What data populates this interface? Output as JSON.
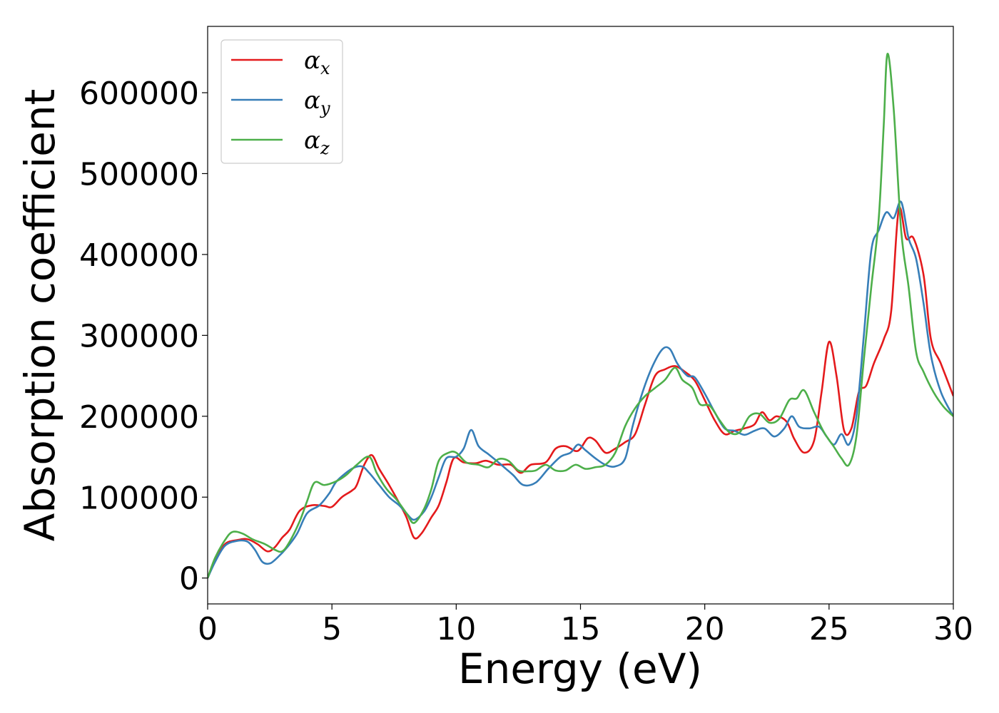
{
  "chart_data": {
    "type": "line",
    "xlabel": "Energy (eV)",
    "ylabel": "Absorption coefficient",
    "xlim": [
      0,
      30
    ],
    "ylim": [
      -32000,
      682000
    ],
    "xticks": [
      0,
      5,
      10,
      15,
      20,
      25,
      30
    ],
    "yticks": [
      0,
      100000,
      200000,
      300000,
      400000,
      500000,
      600000
    ],
    "grid": false,
    "legend_position": "top-left",
    "series": [
      {
        "name": "α",
        "subscript": "x",
        "color": "#e41a1c",
        "points": [
          [
            0,
            0
          ],
          [
            0.3,
            22000
          ],
          [
            0.7,
            42000
          ],
          [
            1.2,
            47000
          ],
          [
            1.6,
            48000
          ],
          [
            2.0,
            42000
          ],
          [
            2.4,
            33000
          ],
          [
            2.7,
            38000
          ],
          [
            3.0,
            50000
          ],
          [
            3.3,
            60000
          ],
          [
            3.7,
            83000
          ],
          [
            4.2,
            90000
          ],
          [
            4.7,
            89000
          ],
          [
            5.0,
            88000
          ],
          [
            5.4,
            100000
          ],
          [
            5.8,
            108000
          ],
          [
            6.0,
            115000
          ],
          [
            6.3,
            140000
          ],
          [
            6.6,
            152000
          ],
          [
            6.9,
            135000
          ],
          [
            7.3,
            115000
          ],
          [
            7.7,
            93000
          ],
          [
            8.0,
            75000
          ],
          [
            8.3,
            50000
          ],
          [
            8.6,
            55000
          ],
          [
            9.0,
            75000
          ],
          [
            9.3,
            90000
          ],
          [
            9.6,
            118000
          ],
          [
            9.9,
            148000
          ],
          [
            10.3,
            143000
          ],
          [
            10.8,
            142000
          ],
          [
            11.2,
            145000
          ],
          [
            11.7,
            140000
          ],
          [
            12.2,
            140000
          ],
          [
            12.6,
            130000
          ],
          [
            13.0,
            140000
          ],
          [
            13.6,
            143000
          ],
          [
            14.0,
            160000
          ],
          [
            14.4,
            163000
          ],
          [
            14.8,
            157000
          ],
          [
            15.0,
            160000
          ],
          [
            15.3,
            173000
          ],
          [
            15.6,
            170000
          ],
          [
            16.0,
            155000
          ],
          [
            16.4,
            160000
          ],
          [
            16.8,
            168000
          ],
          [
            17.2,
            178000
          ],
          [
            17.6,
            215000
          ],
          [
            18.0,
            250000
          ],
          [
            18.4,
            258000
          ],
          [
            18.8,
            262000
          ],
          [
            19.2,
            255000
          ],
          [
            19.6,
            244000
          ],
          [
            20.0,
            220000
          ],
          [
            20.4,
            195000
          ],
          [
            20.8,
            178000
          ],
          [
            21.2,
            182000
          ],
          [
            21.6,
            185000
          ],
          [
            22.0,
            190000
          ],
          [
            22.3,
            205000
          ],
          [
            22.6,
            195000
          ],
          [
            22.9,
            200000
          ],
          [
            23.3,
            193000
          ],
          [
            23.6,
            172000
          ],
          [
            24.0,
            155000
          ],
          [
            24.4,
            170000
          ],
          [
            24.7,
            230000
          ],
          [
            25.0,
            292000
          ],
          [
            25.3,
            250000
          ],
          [
            25.6,
            183000
          ],
          [
            25.9,
            185000
          ],
          [
            26.2,
            230000
          ],
          [
            26.5,
            238000
          ],
          [
            26.8,
            265000
          ],
          [
            27.2,
            295000
          ],
          [
            27.5,
            330000
          ],
          [
            27.8,
            455000
          ],
          [
            28.1,
            420000
          ],
          [
            28.4,
            420000
          ],
          [
            28.8,
            375000
          ],
          [
            29.1,
            295000
          ],
          [
            29.5,
            265000
          ],
          [
            30.0,
            225000
          ]
        ]
      },
      {
        "name": "α",
        "subscript": "y",
        "color": "#377eb8",
        "points": [
          [
            0,
            0
          ],
          [
            0.3,
            20000
          ],
          [
            0.7,
            40000
          ],
          [
            1.2,
            46000
          ],
          [
            1.6,
            45000
          ],
          [
            1.9,
            35000
          ],
          [
            2.2,
            20000
          ],
          [
            2.5,
            18000
          ],
          [
            2.8,
            25000
          ],
          [
            3.2,
            38000
          ],
          [
            3.6,
            55000
          ],
          [
            4.0,
            80000
          ],
          [
            4.5,
            90000
          ],
          [
            4.9,
            105000
          ],
          [
            5.2,
            120000
          ],
          [
            5.8,
            135000
          ],
          [
            6.2,
            138000
          ],
          [
            6.5,
            130000
          ],
          [
            6.9,
            115000
          ],
          [
            7.3,
            100000
          ],
          [
            7.7,
            90000
          ],
          [
            8.0,
            80000
          ],
          [
            8.3,
            72000
          ],
          [
            8.7,
            82000
          ],
          [
            9.0,
            100000
          ],
          [
            9.3,
            125000
          ],
          [
            9.6,
            148000
          ],
          [
            10.0,
            150000
          ],
          [
            10.3,
            160000
          ],
          [
            10.6,
            183000
          ],
          [
            10.9,
            163000
          ],
          [
            11.3,
            153000
          ],
          [
            11.7,
            143000
          ],
          [
            12.0,
            135000
          ],
          [
            12.3,
            127000
          ],
          [
            12.7,
            115000
          ],
          [
            13.2,
            118000
          ],
          [
            13.7,
            135000
          ],
          [
            14.2,
            150000
          ],
          [
            14.6,
            155000
          ],
          [
            14.9,
            165000
          ],
          [
            15.2,
            158000
          ],
          [
            15.6,
            148000
          ],
          [
            16.0,
            140000
          ],
          [
            16.4,
            138000
          ],
          [
            16.8,
            148000
          ],
          [
            17.1,
            188000
          ],
          [
            17.5,
            230000
          ],
          [
            17.9,
            262000
          ],
          [
            18.3,
            283000
          ],
          [
            18.6,
            283000
          ],
          [
            18.9,
            265000
          ],
          [
            19.3,
            250000
          ],
          [
            19.6,
            248000
          ],
          [
            20.0,
            228000
          ],
          [
            20.4,
            205000
          ],
          [
            20.8,
            185000
          ],
          [
            21.2,
            182000
          ],
          [
            21.6,
            177000
          ],
          [
            22.0,
            182000
          ],
          [
            22.4,
            185000
          ],
          [
            22.8,
            175000
          ],
          [
            23.2,
            185000
          ],
          [
            23.5,
            200000
          ],
          [
            23.8,
            187000
          ],
          [
            24.2,
            185000
          ],
          [
            24.6,
            187000
          ],
          [
            24.9,
            175000
          ],
          [
            25.2,
            165000
          ],
          [
            25.5,
            178000
          ],
          [
            25.8,
            165000
          ],
          [
            26.1,
            200000
          ],
          [
            26.4,
            300000
          ],
          [
            26.7,
            405000
          ],
          [
            27.0,
            430000
          ],
          [
            27.3,
            452000
          ],
          [
            27.6,
            445000
          ],
          [
            27.9,
            465000
          ],
          [
            28.2,
            420000
          ],
          [
            28.5,
            395000
          ],
          [
            28.8,
            340000
          ],
          [
            29.1,
            275000
          ],
          [
            29.5,
            230000
          ],
          [
            30.0,
            200000
          ]
        ]
      },
      {
        "name": "α",
        "subscript": "z",
        "color": "#4daf4a",
        "points": [
          [
            0,
            0
          ],
          [
            0.3,
            25000
          ],
          [
            0.7,
            47000
          ],
          [
            1.0,
            57000
          ],
          [
            1.4,
            55000
          ],
          [
            1.8,
            48000
          ],
          [
            2.3,
            42000
          ],
          [
            2.7,
            35000
          ],
          [
            3.0,
            33000
          ],
          [
            3.3,
            45000
          ],
          [
            3.7,
            70000
          ],
          [
            4.0,
            95000
          ],
          [
            4.3,
            118000
          ],
          [
            4.7,
            115000
          ],
          [
            5.2,
            120000
          ],
          [
            5.6,
            128000
          ],
          [
            6.0,
            140000
          ],
          [
            6.5,
            150000
          ],
          [
            6.8,
            130000
          ],
          [
            7.2,
            110000
          ],
          [
            7.6,
            97000
          ],
          [
            8.0,
            80000
          ],
          [
            8.3,
            68000
          ],
          [
            8.7,
            85000
          ],
          [
            9.0,
            110000
          ],
          [
            9.3,
            145000
          ],
          [
            9.7,
            155000
          ],
          [
            10.0,
            155000
          ],
          [
            10.4,
            143000
          ],
          [
            10.9,
            140000
          ],
          [
            11.3,
            137000
          ],
          [
            11.7,
            147000
          ],
          [
            12.1,
            145000
          ],
          [
            12.5,
            133000
          ],
          [
            12.9,
            132000
          ],
          [
            13.2,
            133000
          ],
          [
            13.6,
            140000
          ],
          [
            14.0,
            133000
          ],
          [
            14.4,
            133000
          ],
          [
            14.8,
            140000
          ],
          [
            15.2,
            135000
          ],
          [
            15.6,
            137000
          ],
          [
            16.0,
            140000
          ],
          [
            16.4,
            155000
          ],
          [
            16.8,
            188000
          ],
          [
            17.2,
            210000
          ],
          [
            17.6,
            225000
          ],
          [
            18.0,
            235000
          ],
          [
            18.4,
            245000
          ],
          [
            18.8,
            260000
          ],
          [
            19.1,
            245000
          ],
          [
            19.5,
            235000
          ],
          [
            19.8,
            215000
          ],
          [
            20.2,
            213000
          ],
          [
            20.6,
            195000
          ],
          [
            21.0,
            180000
          ],
          [
            21.4,
            180000
          ],
          [
            21.8,
            200000
          ],
          [
            22.2,
            203000
          ],
          [
            22.6,
            192000
          ],
          [
            23.0,
            197000
          ],
          [
            23.4,
            220000
          ],
          [
            23.7,
            222000
          ],
          [
            24.0,
            232000
          ],
          [
            24.4,
            205000
          ],
          [
            24.8,
            180000
          ],
          [
            25.2,
            162000
          ],
          [
            25.5,
            148000
          ],
          [
            25.8,
            140000
          ],
          [
            26.1,
            175000
          ],
          [
            26.4,
            270000
          ],
          [
            26.7,
            360000
          ],
          [
            27.0,
            445000
          ],
          [
            27.2,
            560000
          ],
          [
            27.35,
            648000
          ],
          [
            27.6,
            580000
          ],
          [
            27.9,
            430000
          ],
          [
            28.2,
            360000
          ],
          [
            28.5,
            280000
          ],
          [
            28.8,
            255000
          ],
          [
            29.2,
            230000
          ],
          [
            29.6,
            212000
          ],
          [
            30.0,
            200000
          ]
        ]
      }
    ]
  }
}
